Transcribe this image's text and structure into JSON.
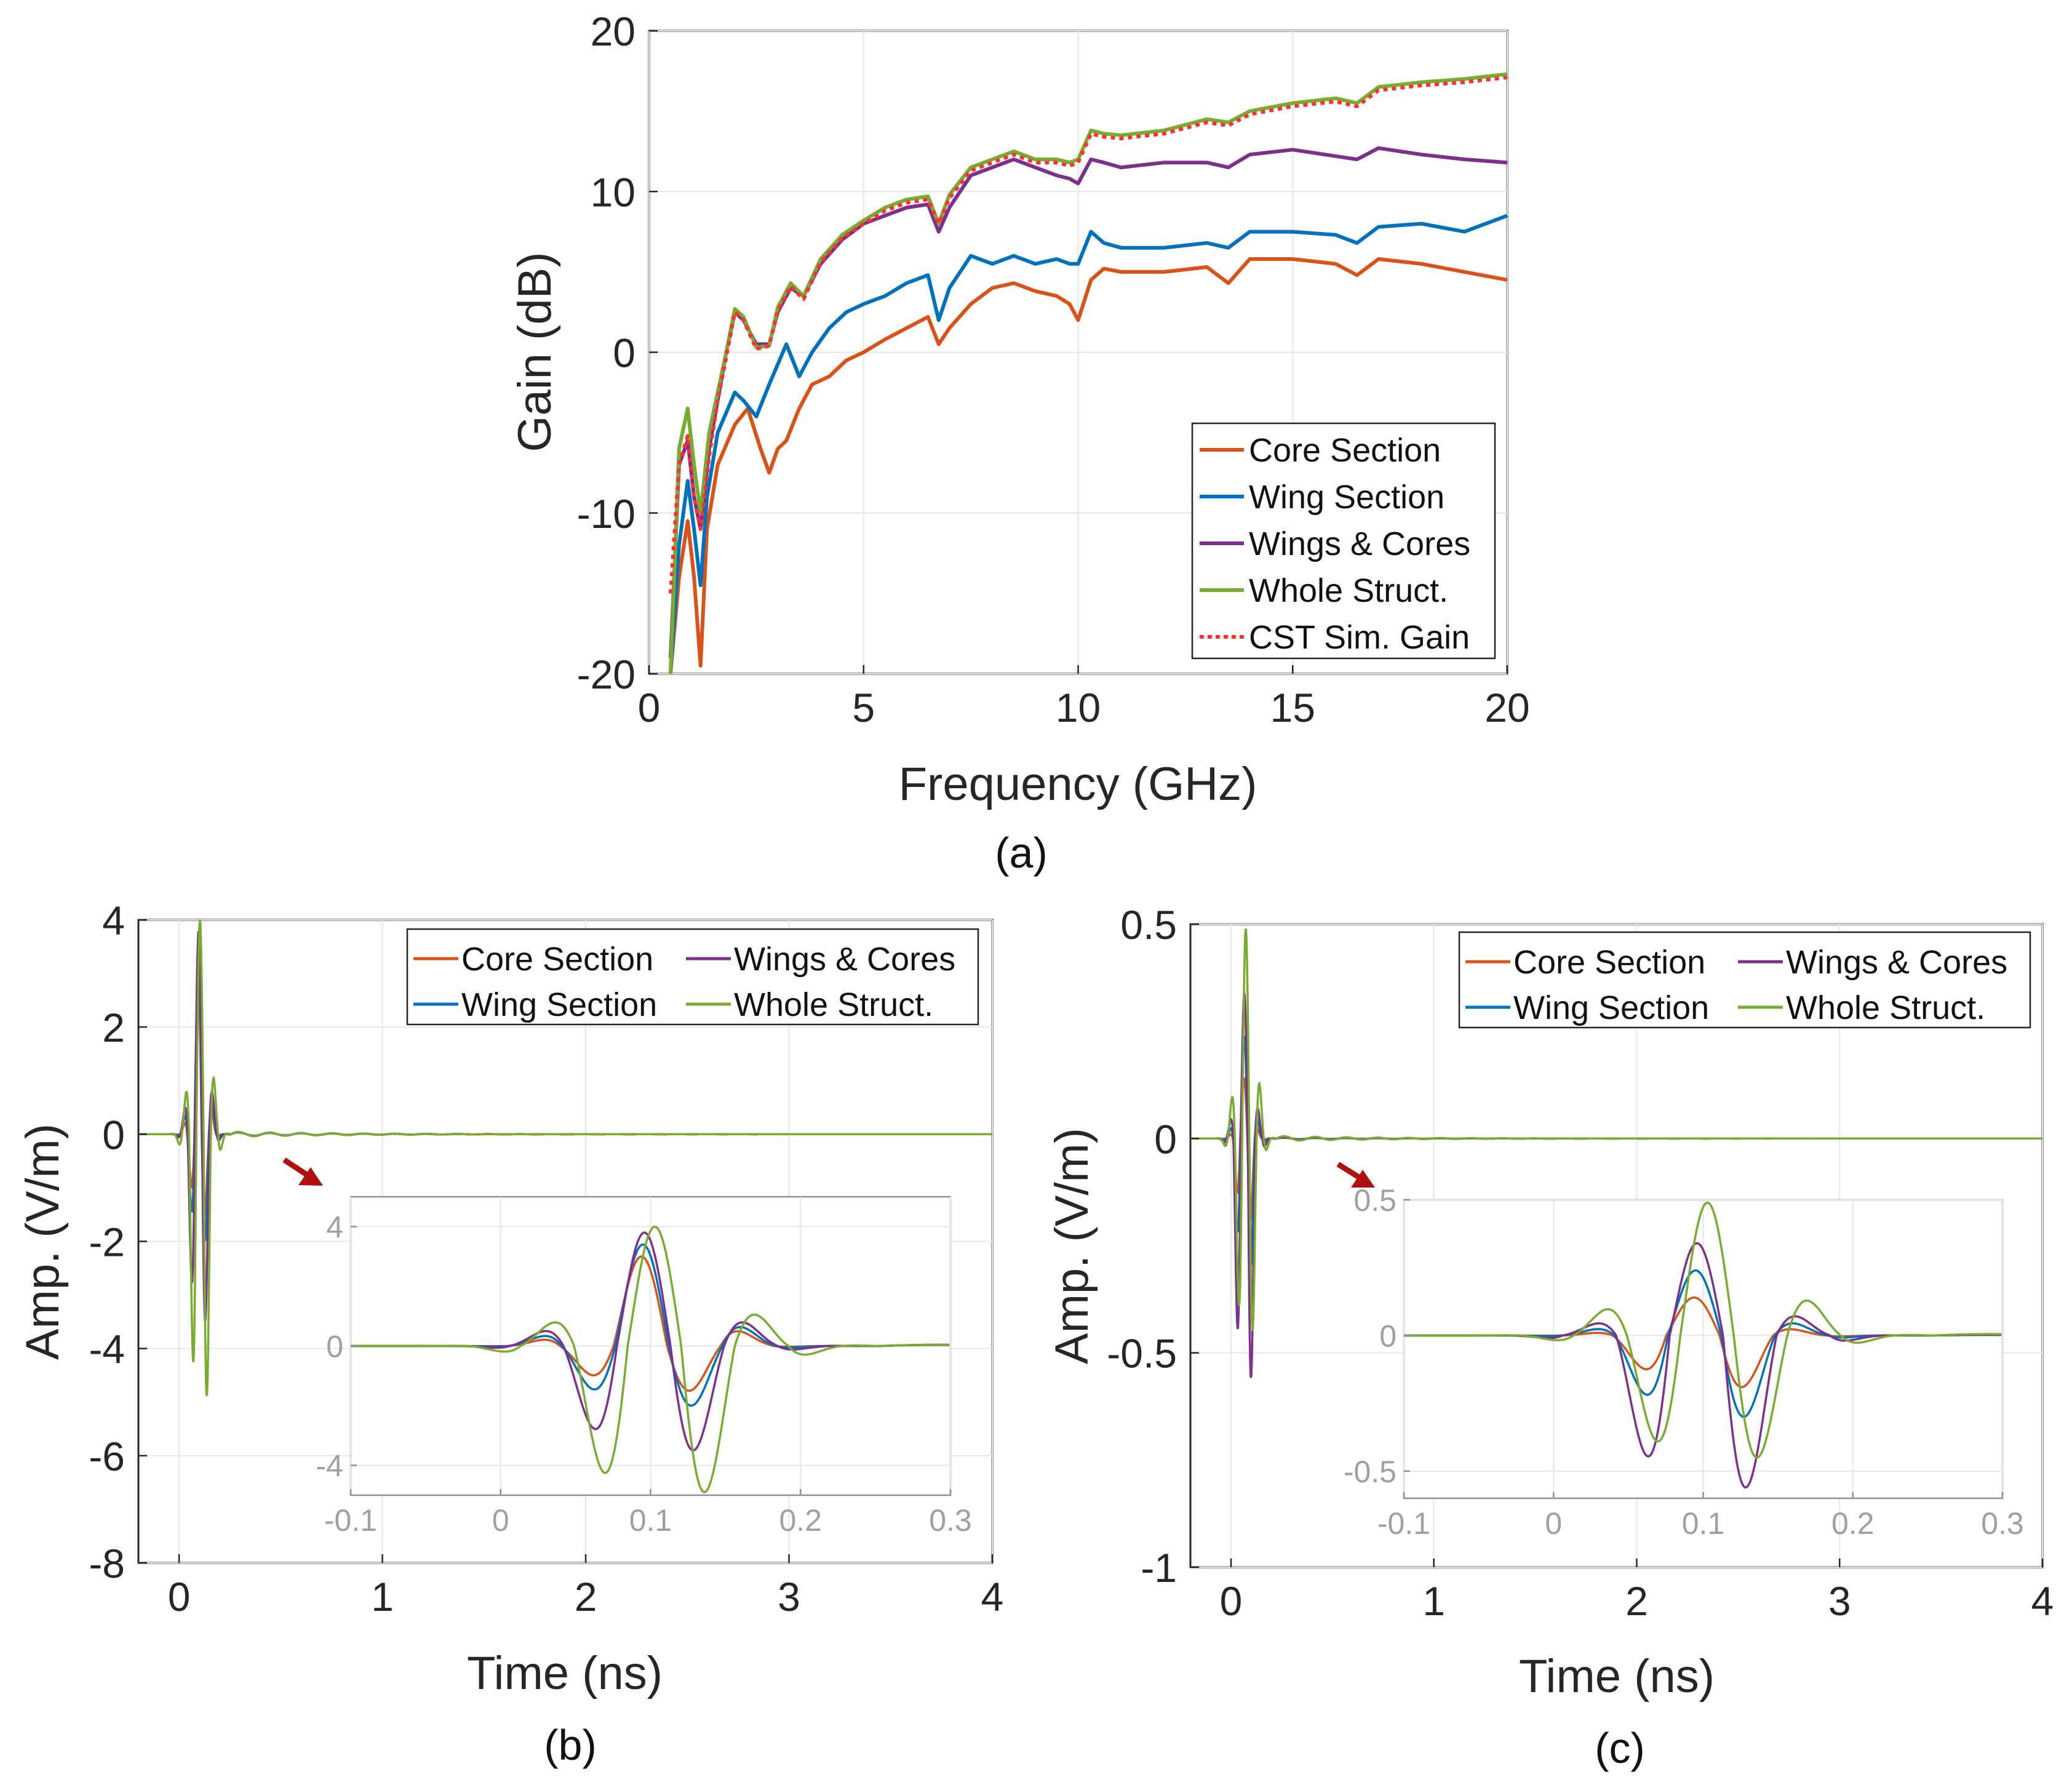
{
  "colors": {
    "core": "#D95319",
    "wing": "#0072BD",
    "wingscores": "#7E2F8E",
    "whole": "#77AC30",
    "cst": "#FF3030",
    "arrow": "#B01010"
  },
  "chart_data": [
    {
      "id": "a",
      "type": "line",
      "sublabel": "(a)",
      "xlabel": "Frequency (GHz)",
      "ylabel": "Gain (dB)",
      "xlim": [
        0,
        20
      ],
      "ylim": [
        -20,
        20
      ],
      "xticks": [
        "0",
        "5",
        "10",
        "15",
        "20"
      ],
      "yticks": [
        "-20",
        "-10",
        "0",
        "10",
        "20"
      ],
      "grid": true,
      "legend_position": "bottom-right",
      "series": [
        {
          "name": "Core Section",
          "color_key": "core",
          "style": "solid",
          "x": [
            0.5,
            0.7,
            0.9,
            1.05,
            1.2,
            1.35,
            1.6,
            2.0,
            2.3,
            2.6,
            2.8,
            3.0,
            3.2,
            3.5,
            3.8,
            4.2,
            4.6,
            5.0,
            5.5,
            6.0,
            6.5,
            6.75,
            7.0,
            7.5,
            8.0,
            8.5,
            9.0,
            9.5,
            9.8,
            10.0,
            10.3,
            10.6,
            11.0,
            12.0,
            13.0,
            13.5,
            14.0,
            15.0,
            16.0,
            16.5,
            17.0,
            18.0,
            19.0,
            20.0
          ],
          "y": [
            -20,
            -14,
            -10.5,
            -14,
            -19.5,
            -11,
            -7,
            -4.5,
            -3.5,
            -6,
            -7.5,
            -6,
            -5.5,
            -3.5,
            -2,
            -1.5,
            -0.5,
            0,
            0.8,
            1.5,
            2.2,
            0.5,
            1.5,
            3,
            4,
            4.3,
            3.8,
            3.5,
            3,
            2,
            4.5,
            5.2,
            5,
            5,
            5.3,
            4.3,
            5.8,
            5.8,
            5.5,
            4.8,
            5.8,
            5.5,
            5,
            4.5
          ]
        },
        {
          "name": "Wing Section",
          "color_key": "wing",
          "style": "solid",
          "x": [
            0.5,
            0.7,
            0.9,
            1.05,
            1.2,
            1.35,
            1.6,
            2.0,
            2.2,
            2.5,
            2.8,
            3.2,
            3.5,
            3.8,
            4.2,
            4.6,
            5.0,
            5.5,
            6.0,
            6.5,
            6.75,
            7.0,
            7.5,
            8.0,
            8.5,
            9.0,
            9.5,
            9.8,
            10.0,
            10.3,
            10.6,
            11.0,
            12.0,
            13.0,
            13.5,
            14.0,
            15.0,
            16.0,
            16.5,
            17.0,
            18.0,
            19.0,
            20.0
          ],
          "y": [
            -20,
            -12,
            -8,
            -11,
            -14.5,
            -9,
            -5,
            -2.5,
            -3,
            -4,
            -2,
            0.5,
            -1.5,
            0,
            1.5,
            2.5,
            3,
            3.5,
            4.3,
            4.8,
            2,
            4,
            6,
            5.5,
            6,
            5.5,
            5.8,
            5.5,
            5.5,
            7.5,
            6.8,
            6.5,
            6.5,
            6.8,
            6.5,
            7.5,
            7.5,
            7.3,
            6.8,
            7.8,
            8,
            7.5,
            8.5
          ]
        },
        {
          "name": "Wings & Cores",
          "color_key": "wingscores",
          "style": "solid",
          "x": [
            0.5,
            0.7,
            0.9,
            1.05,
            1.2,
            1.4,
            1.6,
            1.8,
            2.0,
            2.2,
            2.5,
            2.8,
            3.0,
            3.3,
            3.6,
            4.0,
            4.5,
            5.0,
            5.5,
            6.0,
            6.5,
            6.75,
            7.0,
            7.5,
            8.0,
            8.5,
            9.0,
            9.5,
            9.8,
            10.0,
            10.3,
            10.6,
            11.0,
            12.0,
            13.0,
            13.5,
            14.0,
            15.0,
            16.0,
            16.5,
            17.0,
            18.0,
            19.0,
            20.0
          ],
          "y": [
            -19,
            -7,
            -5.5,
            -9,
            -11,
            -6,
            -3,
            0,
            2.5,
            2,
            0.5,
            0.5,
            2.5,
            4,
            3.5,
            5.5,
            7,
            8,
            8.5,
            9,
            9.2,
            7.5,
            9,
            11,
            11.5,
            12,
            11.5,
            11,
            10.8,
            10.5,
            12,
            11.8,
            11.5,
            11.8,
            11.8,
            11.5,
            12.3,
            12.6,
            12.2,
            12,
            12.7,
            12.3,
            12,
            11.8
          ]
        },
        {
          "name": "Whole Struct.",
          "color_key": "whole",
          "style": "solid",
          "x": [
            0.5,
            0.7,
            0.9,
            1.05,
            1.2,
            1.4,
            1.6,
            1.8,
            2.0,
            2.2,
            2.5,
            2.8,
            3.0,
            3.3,
            3.6,
            4.0,
            4.5,
            5.0,
            5.5,
            6.0,
            6.5,
            6.75,
            7.0,
            7.5,
            8.0,
            8.5,
            9.0,
            9.5,
            9.8,
            10.0,
            10.3,
            10.6,
            11.0,
            12.0,
            13.0,
            13.5,
            14.0,
            15.0,
            16.0,
            16.5,
            17.0,
            18.0,
            19.0,
            20.0
          ],
          "y": [
            -20,
            -6,
            -3.5,
            -7,
            -10,
            -5,
            -2.5,
            0,
            2.7,
            2.2,
            0.3,
            0.4,
            2.8,
            4.3,
            3.5,
            5.8,
            7.3,
            8.2,
            9,
            9.5,
            9.7,
            8,
            9.8,
            11.5,
            12,
            12.5,
            12,
            12,
            11.8,
            12,
            13.8,
            13.6,
            13.5,
            13.8,
            14.5,
            14.3,
            15,
            15.5,
            15.8,
            15.5,
            16.5,
            16.8,
            17,
            17.3
          ]
        },
        {
          "name": "CST Sim. Gain",
          "color_key": "cst",
          "style": "dotted",
          "x": [
            0.5,
            0.7,
            0.9,
            1.05,
            1.2,
            1.4,
            1.6,
            1.8,
            2.0,
            2.2,
            2.5,
            2.8,
            3.0,
            3.3,
            3.6,
            4.0,
            4.5,
            5.0,
            5.5,
            6.0,
            6.5,
            6.75,
            7.0,
            7.5,
            8.0,
            8.5,
            9.0,
            9.5,
            9.8,
            10.0,
            10.3,
            10.6,
            11.0,
            12.0,
            13.0,
            13.5,
            14.0,
            15.0,
            16.0,
            16.5,
            17.0,
            18.0,
            19.0,
            20.0
          ],
          "y": [
            -15,
            -7,
            -5.2,
            -9,
            -11,
            -6.5,
            -3,
            -0.3,
            2.5,
            2,
            0.2,
            0.4,
            2.6,
            4.1,
            3.3,
            5.6,
            7.1,
            8,
            8.8,
            9.3,
            9.5,
            8,
            9.6,
            11.3,
            11.8,
            12.3,
            11.8,
            11.8,
            11.6,
            11.8,
            13.6,
            13.4,
            13.3,
            13.6,
            14.3,
            14.1,
            14.8,
            15.3,
            15.6,
            15.3,
            16.3,
            16.6,
            16.8,
            17.1
          ]
        }
      ]
    },
    {
      "id": "b",
      "type": "line",
      "sublabel": "(b)",
      "xlabel": "Time (ns)",
      "ylabel": "Amp. (V/m)",
      "xlim": [
        -0.2,
        4
      ],
      "ylim": [
        -8,
        4
      ],
      "xticks": [
        "0",
        "1",
        "2",
        "3",
        "4"
      ],
      "yticks": [
        "-8",
        "-6",
        "-4",
        "-2",
        "0",
        "2",
        "4"
      ],
      "legend_position": "top-right",
      "legend": [
        "Core Section",
        "Wing Section",
        "Wings & Cores",
        "Whole Struct."
      ],
      "pulse_t0": 0.1,
      "peaks": {
        "core": 3.0,
        "wing": 3.4,
        "wingscores": 3.8,
        "whole": 4.0
      },
      "troughs": {
        "core": -1.5,
        "wing": -2.0,
        "wingscores": -3.5,
        "whole": -4.9
      },
      "inset": {
        "xlim": [
          -0.1,
          0.3
        ],
        "ylim": [
          -5,
          5
        ],
        "xticks": [
          "-0.1",
          "0",
          "0.1",
          "0.2",
          "0.3"
        ],
        "yticks": [
          "-4",
          "0",
          "4"
        ]
      }
    },
    {
      "id": "c",
      "type": "line",
      "sublabel": "(c)",
      "xlabel": "Time (ns)",
      "ylabel": "Amp. (V/m)",
      "xlim": [
        -0.2,
        4
      ],
      "ylim": [
        -1,
        0.5
      ],
      "xticks": [
        "0",
        "1",
        "2",
        "3",
        "4"
      ],
      "yticks": [
        "-1",
        "-0.5",
        "0",
        "0.5"
      ],
      "legend_position": "top-right",
      "legend": [
        "Core Section",
        "Wing Section",
        "Wings & Cores",
        "Whole Struct."
      ],
      "pulse_t0": 0.07,
      "peaks": {
        "core": 0.14,
        "wing": 0.24,
        "wingscores": 0.34,
        "whole": 0.49
      },
      "troughs": {
        "core": -0.19,
        "wing": -0.3,
        "wingscores": -0.56,
        "whole": -0.45
      },
      "inset": {
        "xlim": [
          -0.1,
          0.3
        ],
        "ylim": [
          -0.6,
          0.5
        ],
        "xticks": [
          "-0.1",
          "0",
          "0.1",
          "0.2",
          "0.3"
        ],
        "yticks": [
          "-0.5",
          "0",
          "0.5"
        ]
      }
    }
  ]
}
